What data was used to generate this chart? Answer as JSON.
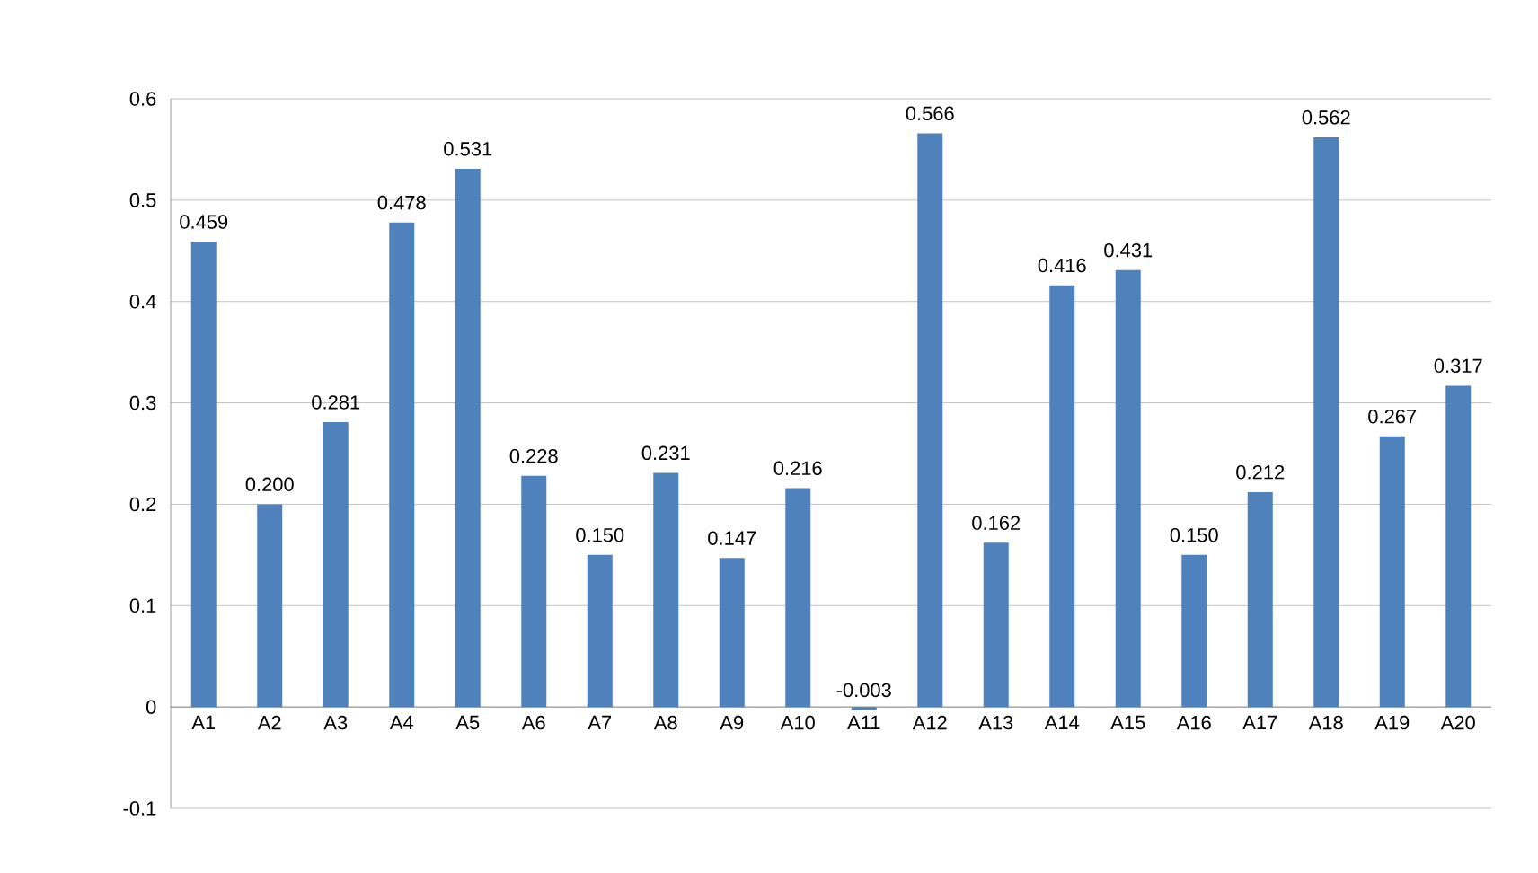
{
  "chart_data": {
    "type": "bar",
    "categories": [
      "A1",
      "A2",
      "A3",
      "A4",
      "A5",
      "A6",
      "A7",
      "A8",
      "A9",
      "A10",
      "A11",
      "A12",
      "A13",
      "A14",
      "A15",
      "A16",
      "A17",
      "A18",
      "A19",
      "A20"
    ],
    "values": [
      0.459,
      0.2,
      0.281,
      0.478,
      0.531,
      0.228,
      0.15,
      0.231,
      0.147,
      0.216,
      -0.003,
      0.566,
      0.162,
      0.416,
      0.431,
      0.15,
      0.212,
      0.562,
      0.267,
      0.317
    ],
    "value_labels": [
      "0.459",
      "0.200",
      "0.281",
      "0.478",
      "0.531",
      "0.228",
      "0.150",
      "0.231",
      "0.147",
      "0.216",
      "-0.003",
      "0.566",
      "0.162",
      "0.416",
      "0.431",
      "0.150",
      "0.212",
      "0.562",
      "0.267",
      "0.317"
    ],
    "color": "#4f81bd",
    "ylim": [
      -0.1,
      0.6
    ],
    "yticks": [
      -0.1,
      0,
      0.1,
      0.2,
      0.3,
      0.4,
      0.5,
      0.6
    ],
    "grid": "y"
  }
}
